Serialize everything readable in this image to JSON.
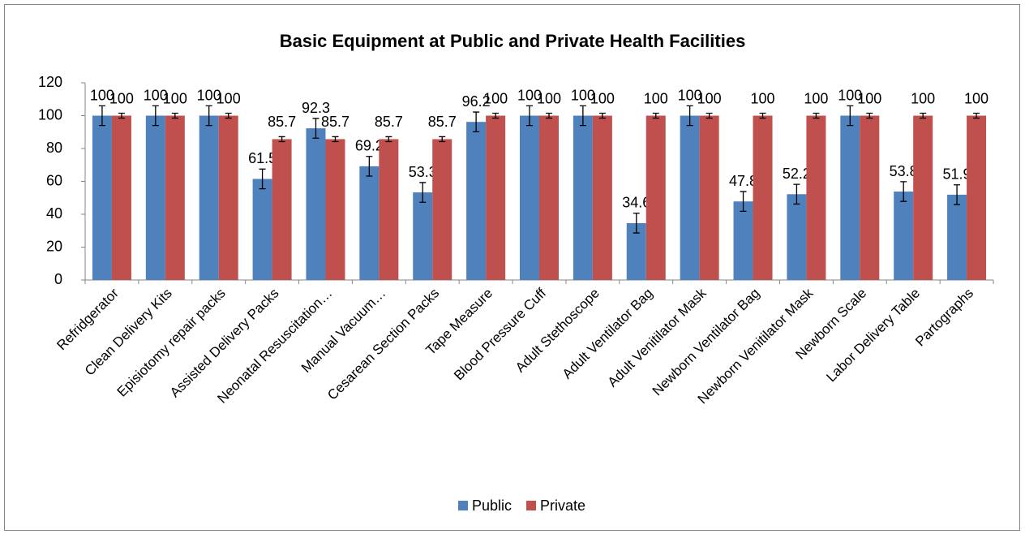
{
  "chart_data": {
    "type": "bar",
    "title": "Basic Equipment at Public and Private Health Facilities",
    "categories": [
      "Refridgerator",
      "Clean Delivery Kits",
      "Episiotomy repair packs",
      "Assisted Delivery Packs",
      "Neonatal Resuscitation…",
      "Manual Vacuum…",
      "Cesarean Section Packs",
      "Tape Measure",
      "Blood Pressure Cuff",
      "Adult Stethoscope",
      "Adult Ventilator Bag",
      "Adult Venitilator Mask",
      "Newborn Ventilator Bag",
      "Newborn Venitilator Mask",
      "Newborn Scale",
      "Labor Delivery Table",
      "Partographs"
    ],
    "series": [
      {
        "name": "Public",
        "color": "#4f81bd",
        "values": [
          100,
          100,
          100,
          61.5,
          92.3,
          69.2,
          53.3,
          96.2,
          100,
          100,
          34.6,
          100,
          47.8,
          52.2,
          100,
          53.8,
          51.9
        ],
        "errors": [
          6,
          6,
          6,
          6,
          6,
          6,
          6,
          6,
          6,
          6,
          6,
          6,
          6,
          6,
          6,
          6,
          6
        ]
      },
      {
        "name": "Private",
        "color": "#c0504d",
        "values": [
          100,
          100,
          100,
          85.7,
          85.7,
          85.7,
          85.7,
          100,
          100,
          100,
          100,
          100,
          100,
          100,
          100,
          100,
          100
        ],
        "errors": [
          1.5,
          1.5,
          1.5,
          1.5,
          1.5,
          1.5,
          1.5,
          1.5,
          1.5,
          1.5,
          1.5,
          1.5,
          1.5,
          1.5,
          1.5,
          1.5,
          1.5
        ]
      }
    ],
    "ylim": [
      0,
      120
    ],
    "yticks": [
      0,
      20,
      40,
      60,
      80,
      100,
      120
    ],
    "grid": false,
    "legend": "bottom"
  }
}
